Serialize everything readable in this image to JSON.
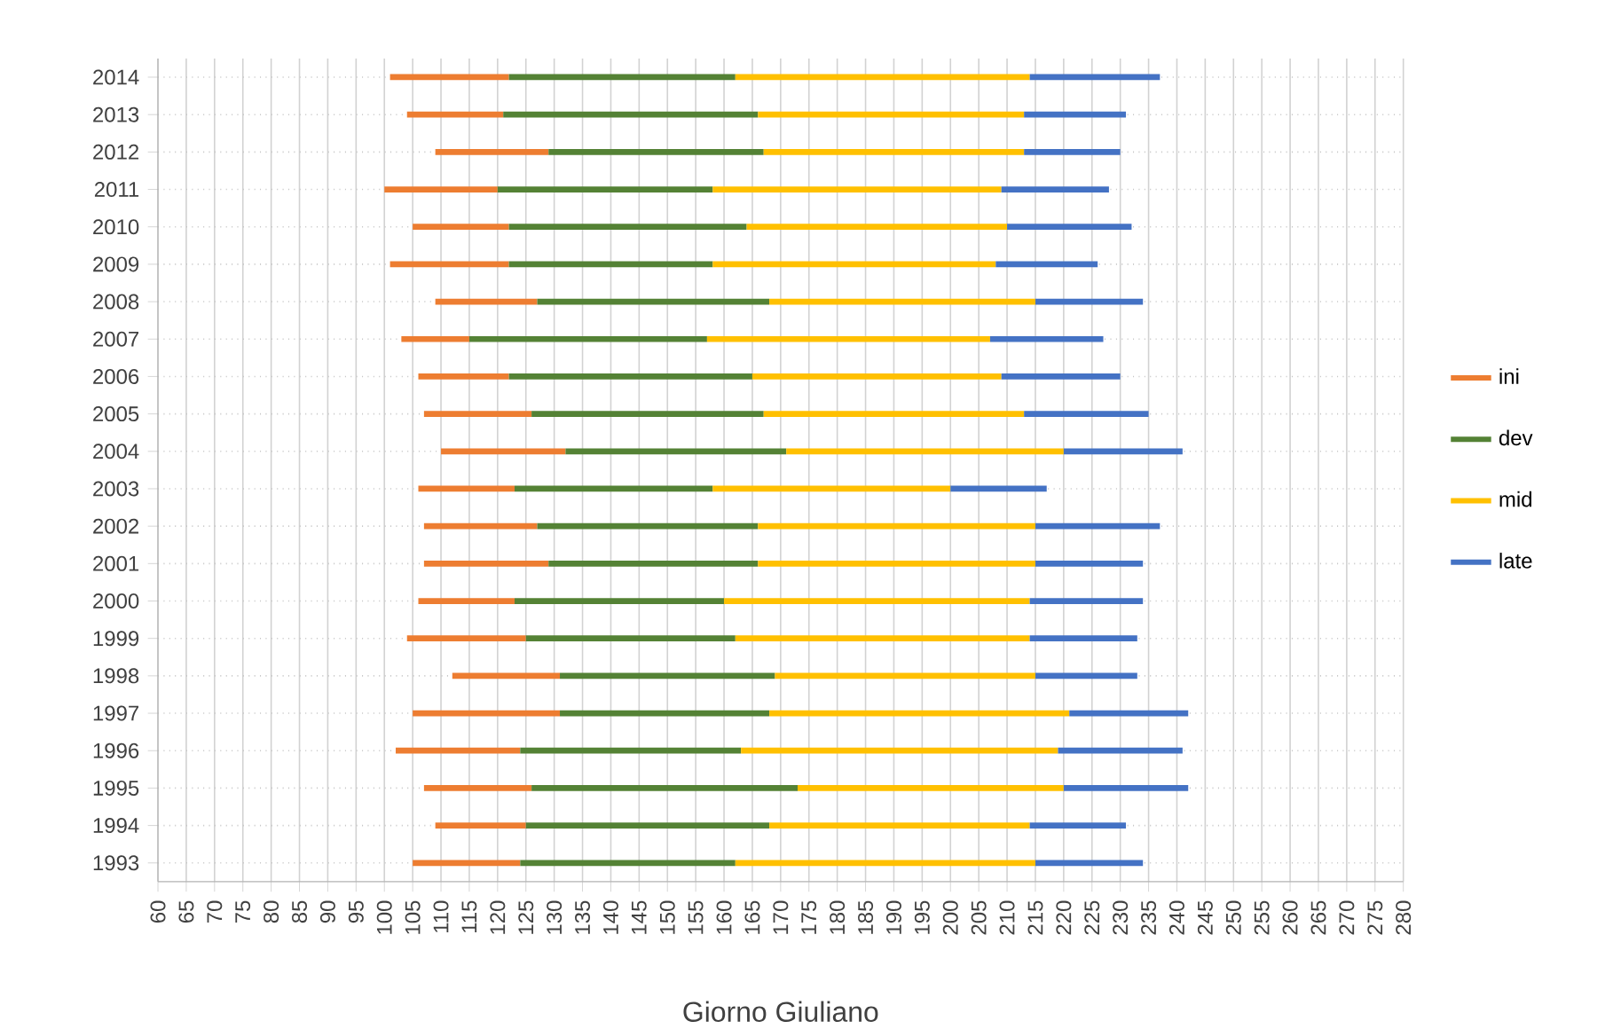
{
  "chart_data": {
    "type": "bar",
    "orientation": "horizontal",
    "xlabel": "Giorno Giuliano",
    "categories": [
      "2014",
      "2013",
      "2012",
      "2011",
      "2010",
      "2009",
      "2008",
      "2007",
      "2006",
      "2005",
      "2004",
      "2003",
      "2002",
      "2001",
      "2000",
      "1999",
      "1998",
      "1997",
      "1996",
      "1995",
      "1994",
      "1993"
    ],
    "series": [
      {
        "name": "ini",
        "color": "#ed7d31",
        "base": [
          101,
          104,
          109,
          100,
          105,
          101,
          109,
          103,
          106,
          107,
          110,
          106,
          107,
          107,
          106,
          104,
          112,
          105,
          102,
          107,
          109,
          105
        ],
        "values": [
          21,
          17,
          20,
          20,
          17,
          21,
          18,
          12,
          16,
          19,
          22,
          17,
          20,
          22,
          17,
          21,
          19,
          26,
          22,
          19,
          16,
          19
        ]
      },
      {
        "name": "dev",
        "color": "#548235",
        "base": [
          122,
          121,
          129,
          120,
          122,
          122,
          127,
          115,
          122,
          126,
          132,
          123,
          127,
          129,
          123,
          125,
          131,
          131,
          124,
          126,
          125,
          124
        ],
        "values": [
          40,
          45,
          38,
          38,
          42,
          36,
          41,
          42,
          43,
          41,
          39,
          35,
          39,
          37,
          37,
          37,
          38,
          37,
          39,
          47,
          43,
          38
        ]
      },
      {
        "name": "mid",
        "color": "#ffc000",
        "base": [
          162,
          166,
          167,
          158,
          164,
          158,
          168,
          157,
          165,
          167,
          171,
          158,
          166,
          166,
          160,
          162,
          169,
          168,
          163,
          173,
          168,
          162
        ],
        "values": [
          52,
          47,
          46,
          51,
          46,
          50,
          47,
          50,
          44,
          46,
          49,
          42,
          49,
          49,
          54,
          52,
          46,
          53,
          56,
          47,
          46,
          53
        ]
      },
      {
        "name": "late",
        "color": "#4472c4",
        "base": [
          214,
          213,
          213,
          209,
          210,
          208,
          215,
          207,
          209,
          213,
          220,
          200,
          215,
          215,
          214,
          214,
          215,
          221,
          219,
          220,
          214,
          215
        ],
        "values": [
          23,
          18,
          17,
          19,
          22,
          18,
          19,
          20,
          21,
          22,
          21,
          17,
          22,
          19,
          20,
          19,
          18,
          21,
          22,
          22,
          17,
          19
        ]
      }
    ],
    "xlim": [
      60,
      280
    ],
    "xticks": [
      60,
      65,
      70,
      75,
      80,
      85,
      90,
      95,
      100,
      105,
      110,
      115,
      120,
      125,
      130,
      135,
      140,
      145,
      150,
      155,
      160,
      165,
      170,
      175,
      180,
      185,
      190,
      195,
      200,
      205,
      210,
      215,
      220,
      225,
      230,
      235,
      240,
      245,
      250,
      255,
      260,
      265,
      270,
      275,
      280
    ],
    "grid": true,
    "legend": "right"
  }
}
